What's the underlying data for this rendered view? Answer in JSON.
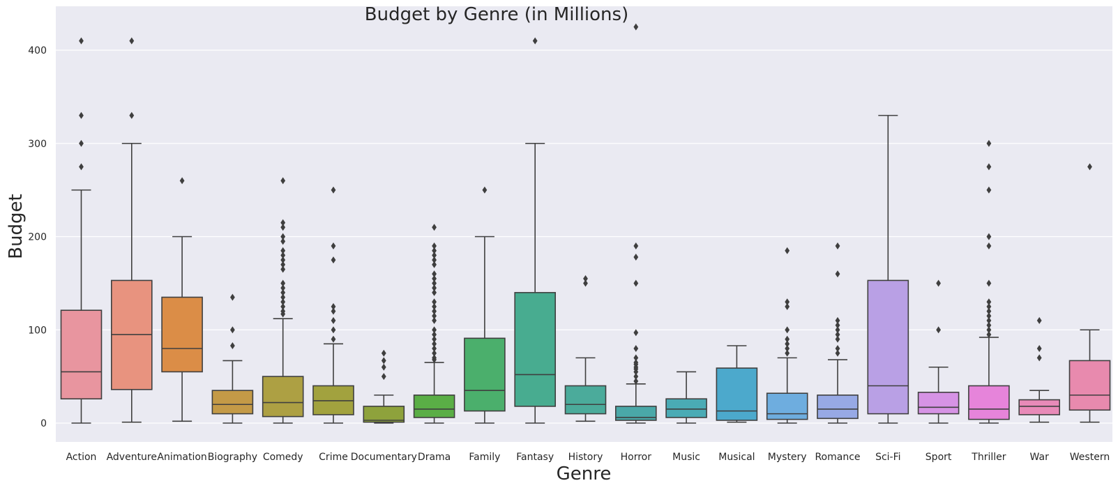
{
  "chart_data": {
    "type": "box",
    "title": "Budget by Genre (in Millions)",
    "xlabel": "Genre",
    "ylabel": "Budget",
    "ylim": [
      -20,
      445
    ],
    "yticks": [
      0,
      100,
      200,
      300,
      400
    ],
    "grid": true,
    "legend": "none",
    "categories": [
      "Action",
      "Adventure",
      "Animation",
      "Biography",
      "Comedy",
      "Crime",
      "Documentary",
      "Drama",
      "Family",
      "Fantasy",
      "History",
      "Horror",
      "Music",
      "Musical",
      "Mystery",
      "Romance",
      "Sci-Fi",
      "Sport",
      "Thriller",
      "War",
      "Western"
    ],
    "colors": [
      "#E8959F",
      "#E8937F",
      "#DB8D47",
      "#C49A47",
      "#ADA043",
      "#A2A23E",
      "#8EA23C",
      "#5AAE46",
      "#4BAF6C",
      "#48AC90",
      "#4BAB9B",
      "#4AA8A8",
      "#4AABB5",
      "#4CA9CC",
      "#6EADDF",
      "#97A9E5",
      "#B9A0E5",
      "#D693E5",
      "#E684DA",
      "#E88AB8",
      "#E88AAE"
    ],
    "boxes": [
      {
        "whisker_low": 0,
        "q1": 26,
        "median": 55,
        "q3": 121,
        "whisker_high": 250,
        "outliers": [
          275,
          300,
          330,
          410
        ]
      },
      {
        "whisker_low": 1,
        "q1": 36,
        "median": 95,
        "q3": 153,
        "whisker_high": 300,
        "outliers": [
          330,
          410
        ]
      },
      {
        "whisker_low": 2,
        "q1": 55,
        "median": 80,
        "q3": 135,
        "whisker_high": 200,
        "outliers": [
          260
        ]
      },
      {
        "whisker_low": 0,
        "q1": 10,
        "median": 20,
        "q3": 35,
        "whisker_high": 67,
        "outliers": [
          83,
          100,
          135
        ]
      },
      {
        "whisker_low": 0,
        "q1": 7,
        "median": 22,
        "q3": 50,
        "whisker_high": 112,
        "outliers": [
          117,
          120,
          125,
          130,
          135,
          140,
          145,
          150,
          165,
          170,
          175,
          180,
          185,
          195,
          200,
          210,
          215,
          260
        ]
      },
      {
        "whisker_low": 0,
        "q1": 9,
        "median": 24,
        "q3": 40,
        "whisker_high": 85,
        "outliers": [
          90,
          100,
          110,
          120,
          125,
          175,
          190,
          250
        ]
      },
      {
        "whisker_low": 0,
        "q1": 1,
        "median": 3,
        "q3": 18,
        "whisker_high": 30,
        "outliers": [
          50,
          60,
          67,
          75
        ]
      },
      {
        "whisker_low": 0,
        "q1": 6,
        "median": 15,
        "q3": 30,
        "whisker_high": 65,
        "outliers": [
          68,
          70,
          75,
          80,
          85,
          90,
          95,
          100,
          110,
          115,
          120,
          125,
          130,
          140,
          145,
          150,
          155,
          160,
          170,
          175,
          180,
          185,
          190,
          210
        ]
      },
      {
        "whisker_low": 0,
        "q1": 13,
        "median": 35,
        "q3": 91,
        "whisker_high": 200,
        "outliers": [
          250
        ]
      },
      {
        "whisker_low": 0,
        "q1": 18,
        "median": 52,
        "q3": 140,
        "whisker_high": 300,
        "outliers": [
          410
        ]
      },
      {
        "whisker_low": 2,
        "q1": 10,
        "median": 20,
        "q3": 40,
        "whisker_high": 70,
        "outliers": [
          150,
          155
        ]
      },
      {
        "whisker_low": 0,
        "q1": 3,
        "median": 6,
        "q3": 18,
        "whisker_high": 42,
        "outliers": [
          45,
          50,
          55,
          58,
          60,
          63,
          65,
          70,
          80,
          97,
          150,
          178,
          190,
          425
        ]
      },
      {
        "whisker_low": 0,
        "q1": 6,
        "median": 15,
        "q3": 26,
        "whisker_high": 55,
        "outliers": []
      },
      {
        "whisker_low": 1,
        "q1": 3,
        "median": 13,
        "q3": 59,
        "whisker_high": 83,
        "outliers": []
      },
      {
        "whisker_low": 0,
        "q1": 4,
        "median": 10,
        "q3": 32,
        "whisker_high": 70,
        "outliers": [
          75,
          80,
          85,
          90,
          100,
          125,
          130,
          185
        ]
      },
      {
        "whisker_low": 0,
        "q1": 5,
        "median": 15,
        "q3": 30,
        "whisker_high": 68,
        "outliers": [
          75,
          80,
          90,
          95,
          100,
          105,
          110,
          160,
          190
        ]
      },
      {
        "whisker_low": 0,
        "q1": 10,
        "median": 40,
        "q3": 153,
        "whisker_high": 330,
        "outliers": []
      },
      {
        "whisker_low": 0,
        "q1": 10,
        "median": 17,
        "q3": 33,
        "whisker_high": 60,
        "outliers": [
          100,
          150
        ]
      },
      {
        "whisker_low": 0,
        "q1": 4,
        "median": 15,
        "q3": 40,
        "whisker_high": 92,
        "outliers": [
          95,
          100,
          105,
          110,
          115,
          120,
          125,
          130,
          150,
          190,
          200,
          250,
          275,
          300
        ]
      },
      {
        "whisker_low": 1,
        "q1": 9,
        "median": 18,
        "q3": 25,
        "whisker_high": 35,
        "outliers": [
          70,
          80,
          110
        ]
      },
      {
        "whisker_low": 1,
        "q1": 14,
        "median": 30,
        "q3": 67,
        "whisker_high": 100,
        "outliers": [
          275
        ]
      }
    ]
  }
}
